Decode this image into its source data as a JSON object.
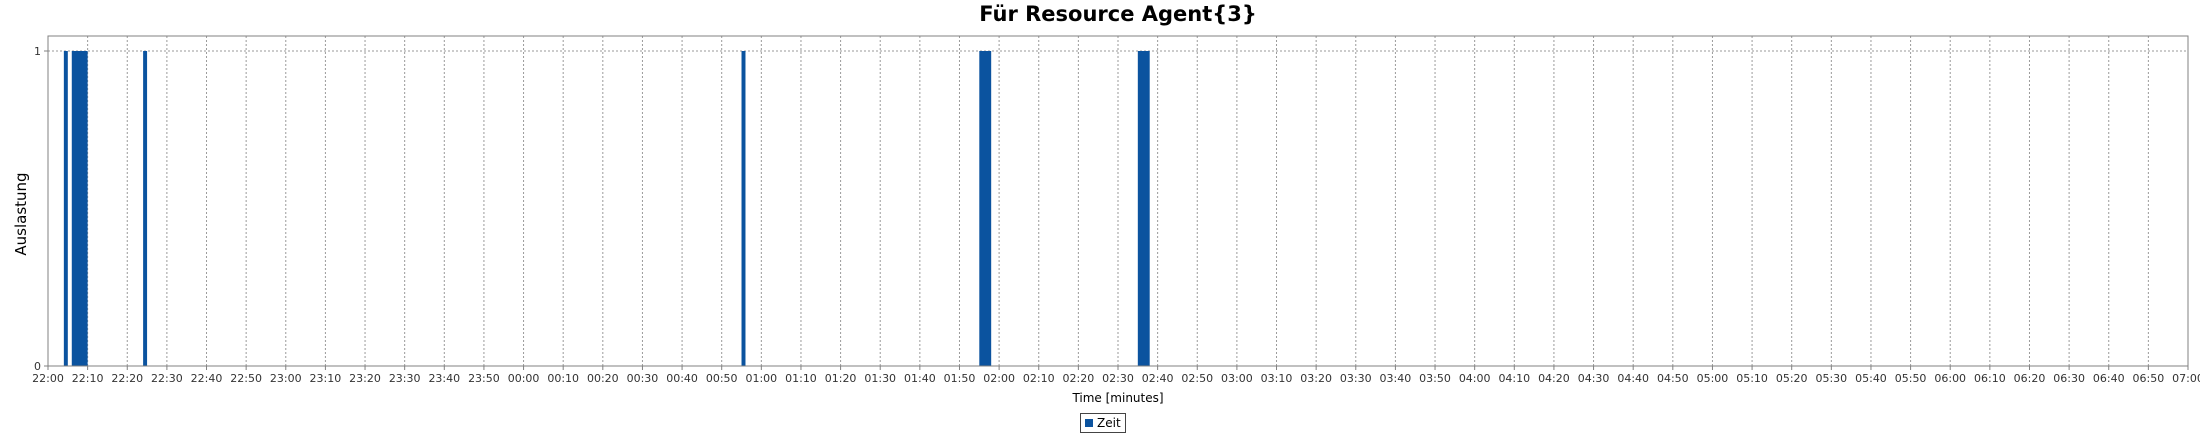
{
  "chart_data": {
    "type": "bar",
    "title": "Für Resource Agent{3}",
    "xlabel": "Time [minutes]",
    "ylabel": "Auslastung",
    "ylim": [
      0,
      1
    ],
    "yticks": [
      "0",
      "1"
    ],
    "grid": true,
    "legend_position": "bottom-center",
    "series": [
      {
        "name": "Zeit",
        "color": "#0b539f",
        "bars": [
          {
            "start": "22:04",
            "end": "22:05",
            "value": 1
          },
          {
            "start": "22:06",
            "end": "22:10",
            "value": 1
          },
          {
            "start": "22:24",
            "end": "22:25",
            "value": 1
          },
          {
            "start": "00:55",
            "end": "00:56",
            "value": 1
          },
          {
            "start": "01:55",
            "end": "01:58",
            "value": 1
          },
          {
            "start": "02:35",
            "end": "02:38",
            "value": 1
          }
        ]
      }
    ],
    "xticks": [
      "22:00",
      "22:10",
      "22:20",
      "22:30",
      "22:40",
      "22:50",
      "23:00",
      "23:10",
      "23:20",
      "23:30",
      "23:40",
      "23:50",
      "00:00",
      "00:10",
      "00:20",
      "00:30",
      "00:40",
      "00:50",
      "01:00",
      "01:10",
      "01:20",
      "01:30",
      "01:40",
      "01:50",
      "02:00",
      "02:10",
      "02:20",
      "02:30",
      "02:40",
      "02:50",
      "03:00",
      "03:10",
      "03:20",
      "03:30",
      "03:40",
      "03:50",
      "04:00",
      "04:10",
      "04:20",
      "04:30",
      "04:40",
      "04:50",
      "05:00",
      "05:10",
      "05:20",
      "05:30",
      "05:40",
      "05:50",
      "06:00",
      "06:10",
      "06:20",
      "06:30",
      "06:40",
      "06:50",
      "07:00"
    ]
  }
}
